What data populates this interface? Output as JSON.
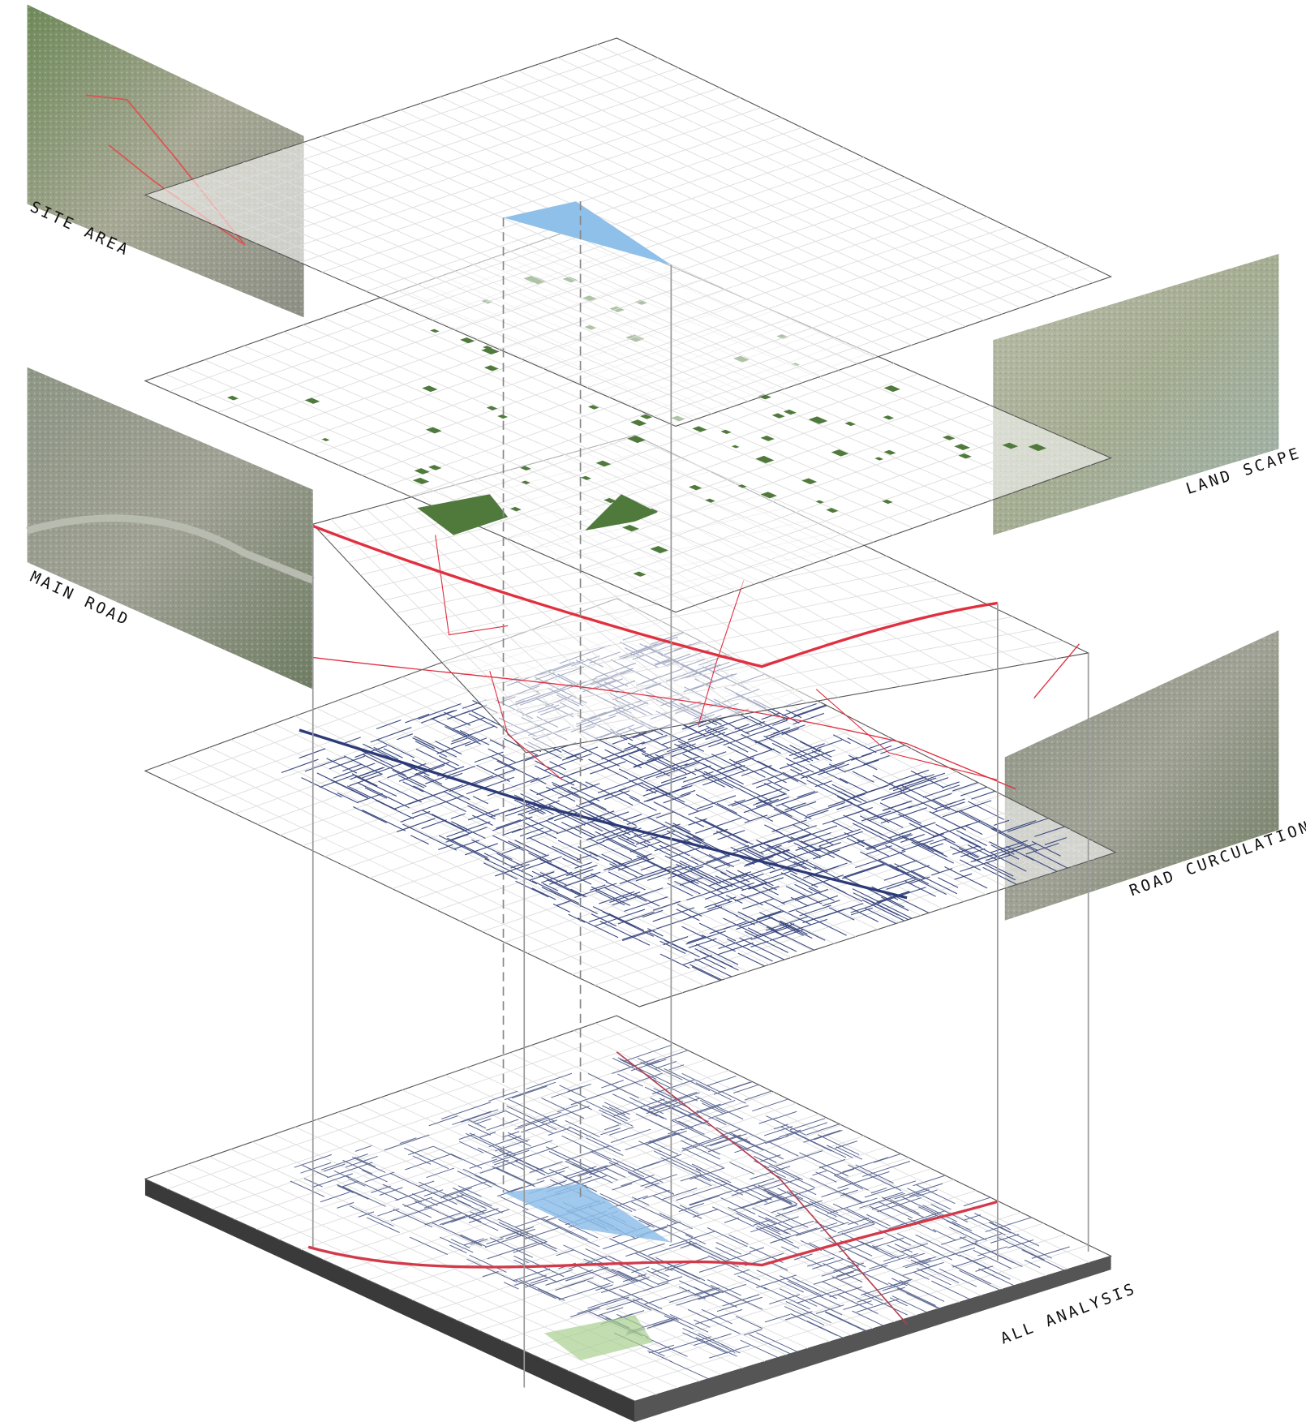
{
  "labels": {
    "site_area": "SITE AREA",
    "land_scape": "LAND SCAPE",
    "main_road": "MAIN ROAD",
    "road_circulation": "ROAD CURCULATION",
    "all_analysis": "ALL ANALYSIS"
  }
}
